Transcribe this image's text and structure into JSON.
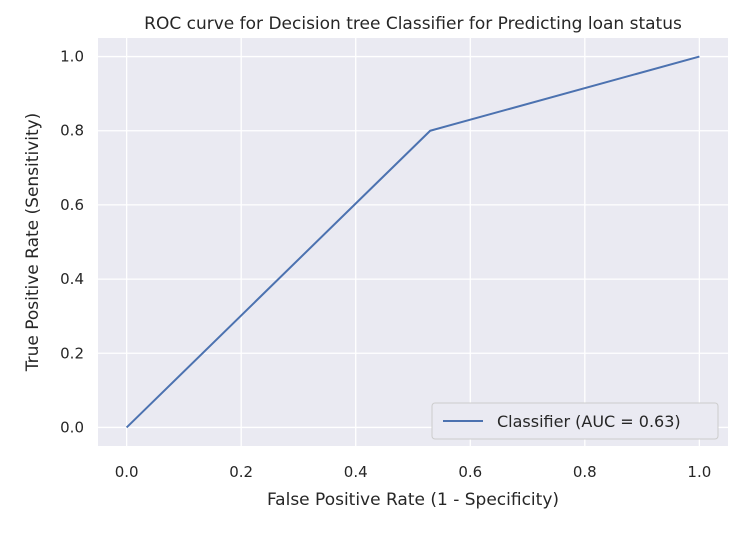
{
  "chart_data": {
    "type": "line",
    "title": "ROC curve for Decision tree Classifier for Predicting loan status",
    "xlabel": "False Positive Rate (1 - Specificity)",
    "ylabel": "True Positive Rate (Sensitivity)",
    "xlim": [
      -0.05,
      1.05
    ],
    "ylim": [
      -0.05,
      1.05
    ],
    "xticks": [
      0.0,
      0.2,
      0.4,
      0.6,
      0.8,
      1.0
    ],
    "yticks": [
      0.0,
      0.2,
      0.4,
      0.6,
      0.8,
      1.0
    ],
    "xtick_labels": [
      "0.0",
      "0.2",
      "0.4",
      "0.6",
      "0.8",
      "1.0"
    ],
    "ytick_labels": [
      "0.0",
      "0.2",
      "0.4",
      "0.6",
      "0.8",
      "1.0"
    ],
    "grid": true,
    "legend_position": "lower-right",
    "series": [
      {
        "name": "Classifier (AUC = 0.63)",
        "color": "#4c72b0",
        "x": [
          0.0,
          0.53,
          1.0
        ],
        "y": [
          0.0,
          0.8,
          1.0
        ]
      }
    ],
    "background_color": "#eaeaf2",
    "grid_color": "#ffffff"
  }
}
